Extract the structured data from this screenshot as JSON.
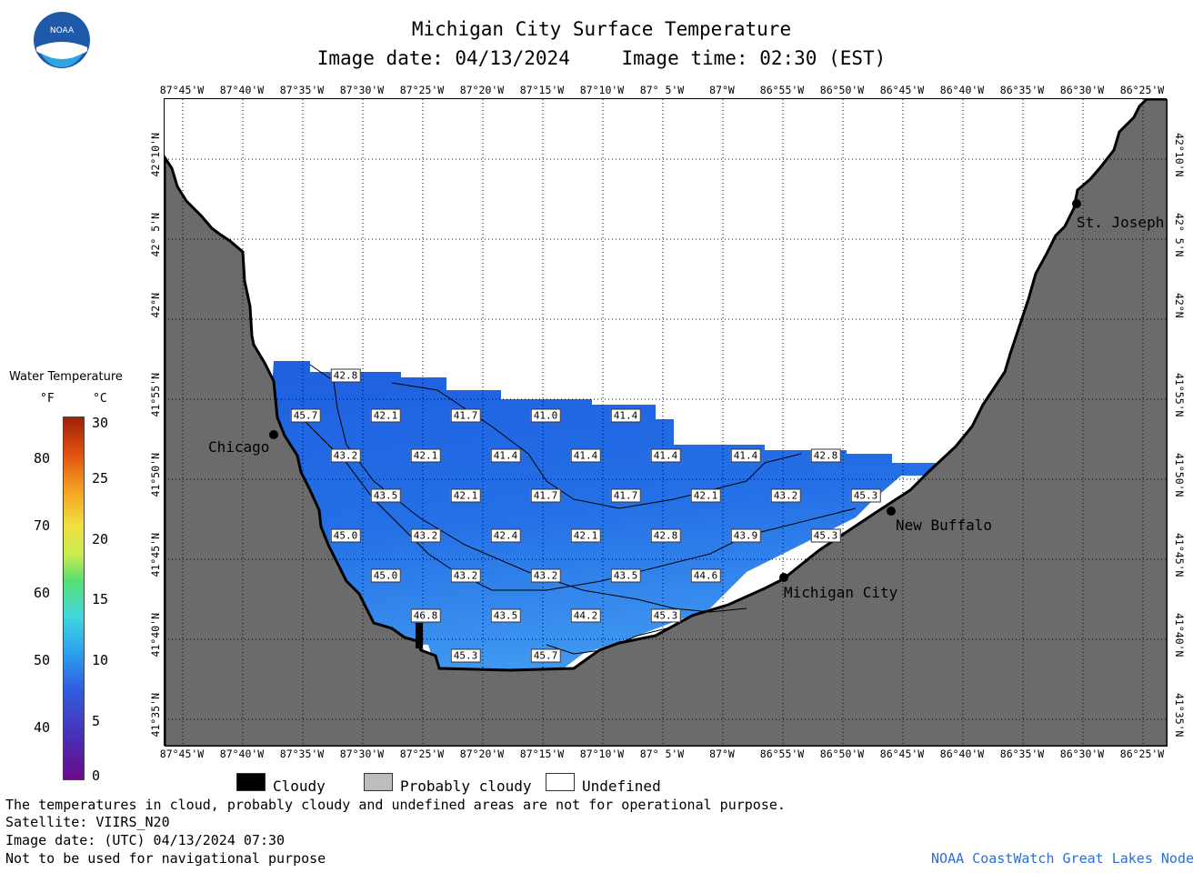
{
  "header": {
    "title": "Michigan City Surface Temperature",
    "image_date": "Image date: 04/13/2024",
    "image_time": "Image time: 02:30 (EST)"
  },
  "logo": {
    "text": "NOAA",
    "icon": "noaa-logo"
  },
  "map": {
    "lon_labels": [
      "87°45'W",
      "87°40'W",
      "87°35'W",
      "87°30'W",
      "87°25'W",
      "87°20'W",
      "87°15'W",
      "87°10'W",
      "87° 5'W",
      "87°W",
      "86°55'W",
      "86°50'W",
      "86°45'W",
      "86°40'W",
      "86°35'W",
      "86°30'W",
      "86°25'W"
    ],
    "lat_labels": [
      "42°10'N",
      "42° 5'N",
      "42°N",
      "41°55'N",
      "41°50'N",
      "41°45'N",
      "41°40'N",
      "41°35'N"
    ],
    "cities": [
      {
        "name": "Chicago"
      },
      {
        "name": "St. Joseph"
      },
      {
        "name": "New Buffalo"
      },
      {
        "name": "Michigan City"
      }
    ],
    "temps": [
      "42.8",
      "45.7",
      "42.1",
      "41.7",
      "41.0",
      "41.4",
      "43.2",
      "42.1",
      "41.4",
      "41.4",
      "41.4",
      "41.4",
      "42.8",
      "43.5",
      "42.1",
      "41.7",
      "41.7",
      "42.1",
      "43.2",
      "45.3",
      "45.0",
      "43.2",
      "42.4",
      "42.1",
      "42.8",
      "43.9",
      "45.3",
      "45.0",
      "43.2",
      "43.2",
      "43.5",
      "44.6",
      "46.8",
      "43.5",
      "44.2",
      "45.3",
      "45.3",
      "45.7"
    ],
    "colors": {
      "land": "#6b6b6b",
      "water_cold": "#1f5fe0",
      "water_warm": "#3a93f0",
      "undefined": "#ffffff"
    }
  },
  "legend": {
    "title": "Water Temperature",
    "unit_f": "°F",
    "unit_c": "°C",
    "f_ticks": [
      "80",
      "70",
      "60",
      "50",
      "40"
    ],
    "c_ticks": [
      "30",
      "25",
      "20",
      "15",
      "10",
      "5",
      "0"
    ]
  },
  "key": {
    "cloudy": "Cloudy",
    "probably_cloudy": "Probably cloudy",
    "undefined": "Undefined"
  },
  "footer": {
    "line1": "The temperatures in cloud, probably cloudy and undefined areas are not for operational purpose.",
    "line2": "Satellite: VIIRS_N20",
    "line3": "Image date: (UTC) 04/13/2024  07:30",
    "line4": "Not to be used for navigational purpose",
    "credit": "NOAA CoastWatch Great Lakes Node"
  }
}
